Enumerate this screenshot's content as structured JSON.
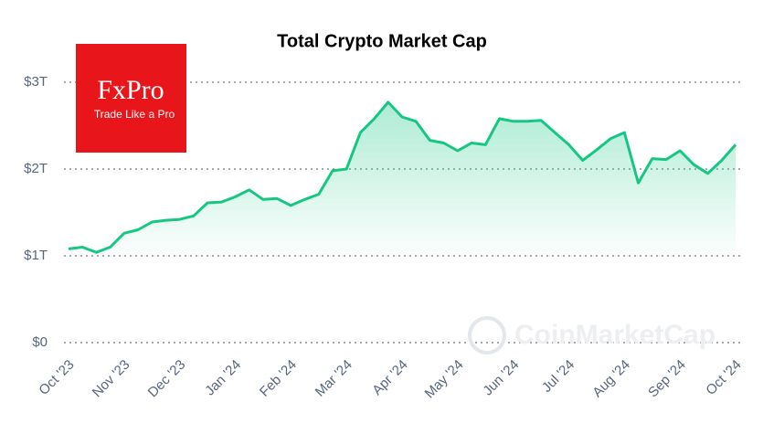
{
  "chart_data": {
    "type": "line",
    "title": "Total Crypto Market Cap",
    "logo": {
      "brand": "FxPro",
      "tagline": "Trade Like a Pro"
    },
    "watermark": "CoinMarketCap",
    "x": [
      0,
      0.25,
      0.5,
      0.75,
      1,
      1.25,
      1.5,
      1.75,
      2,
      2.25,
      2.5,
      2.75,
      3,
      3.25,
      3.5,
      3.75,
      4,
      4.25,
      4.5,
      4.75,
      5,
      5.25,
      5.5,
      5.75,
      6,
      6.25,
      6.5,
      6.75,
      7,
      7.25,
      7.5,
      7.75,
      8,
      8.25,
      8.5,
      8.75,
      9,
      9.25,
      9.5,
      9.75,
      10,
      10.25,
      10.5,
      10.75,
      11,
      11.25,
      11.5,
      11.75,
      12
    ],
    "series": [
      {
        "name": "Total Market Cap",
        "color": "#16c784",
        "values": [
          1.08,
          1.1,
          1.04,
          1.1,
          1.26,
          1.3,
          1.39,
          1.41,
          1.42,
          1.46,
          1.61,
          1.62,
          1.68,
          1.76,
          1.65,
          1.66,
          1.58,
          1.65,
          1.71,
          1.98,
          2.0,
          2.42,
          2.58,
          2.77,
          2.6,
          2.55,
          2.33,
          2.3,
          2.21,
          2.3,
          2.28,
          2.58,
          2.55,
          2.55,
          2.56,
          2.42,
          2.28,
          2.1,
          2.22,
          2.35,
          2.42,
          1.84,
          2.12,
          2.11,
          2.21,
          2.05,
          1.95,
          2.1,
          2.28
        ]
      }
    ],
    "xlim": [
      0,
      12
    ],
    "xticks": [
      {
        "value": 0,
        "label": "Oct '23"
      },
      {
        "value": 1,
        "label": "Nov '23"
      },
      {
        "value": 2,
        "label": "Dec '23"
      },
      {
        "value": 3,
        "label": "Jan '24"
      },
      {
        "value": 4,
        "label": "Feb '24"
      },
      {
        "value": 5,
        "label": "Mar '24"
      },
      {
        "value": 6,
        "label": "Apr '24"
      },
      {
        "value": 7,
        "label": "May '24"
      },
      {
        "value": 8,
        "label": "Jun '24"
      },
      {
        "value": 9,
        "label": "Jul '24"
      },
      {
        "value": 10,
        "label": "Aug '24"
      },
      {
        "value": 11,
        "label": "Sep '24"
      },
      {
        "value": 12,
        "label": "Oct '24"
      }
    ],
    "ylim": [
      0,
      3
    ],
    "yticks": [
      {
        "value": 0,
        "label": "$0"
      },
      {
        "value": 1,
        "label": "$1T"
      },
      {
        "value": 2,
        "label": "$2T"
      },
      {
        "value": 3,
        "label": "$3T"
      }
    ],
    "grid": true
  }
}
